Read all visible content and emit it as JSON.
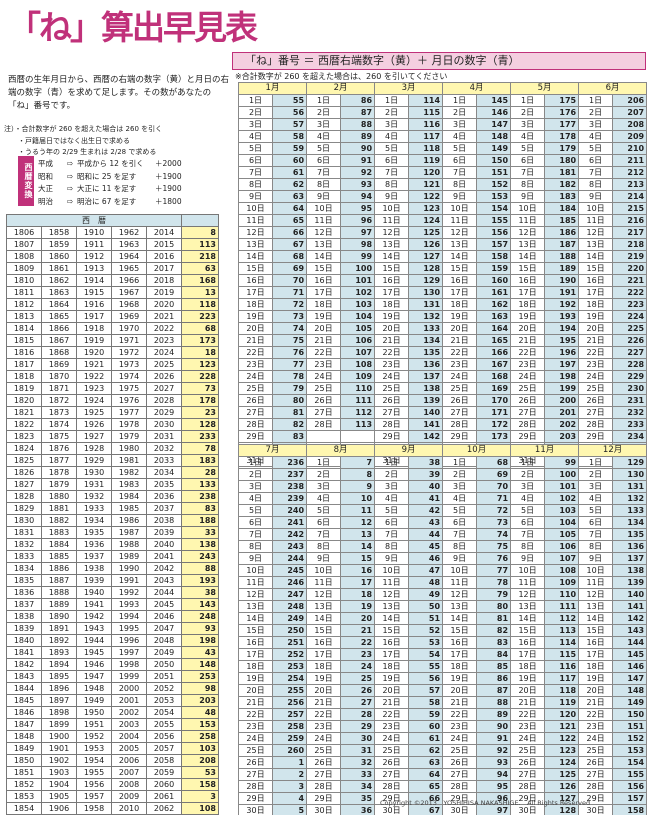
{
  "title": "「ね」算出早見表",
  "formula": "「ね」番号 ＝ 西暦右端数字（黄）＋ 月日の数字（青）",
  "note260": "※合計数字が 260 を超えた場合は、260 を引いてください",
  "intro": "西暦の生年月日から、西暦の右端の数字（黄）と月日の右端の数字（青）を求めて足します。その数があなたの「ね」番号です。",
  "notes": [
    "注）・合計数字が 260 を超えた場合は 260 を引く",
    "　　・戸籍届日ではなく出生日で求める",
    "　　・うるう年の 2/29 生まれは 2/28 で求める"
  ],
  "conversion_label": "西暦変換",
  "conversion": [
    [
      "平成",
      "⇨",
      "平成から 12 を引く",
      "＋2000"
    ],
    [
      "昭和",
      "⇨",
      "昭和に 25 を足す",
      "＋1900"
    ],
    [
      "大正",
      "⇨",
      "大正に 11 を足す",
      "＋1900"
    ],
    [
      "明治",
      "⇨",
      "明治に 67 を足す",
      "＋1800"
    ]
  ],
  "year_header": "西　暦",
  "years": [
    [
      1806,
      1858,
      1910,
      1962,
      2014,
      8
    ],
    [
      1807,
      1859,
      1911,
      1963,
      2015,
      113
    ],
    [
      1808,
      1860,
      1912,
      1964,
      2016,
      218
    ],
    [
      1809,
      1861,
      1913,
      1965,
      2017,
      63
    ],
    [
      1810,
      1862,
      1914,
      1966,
      2018,
      168
    ],
    [
      1811,
      1863,
      1915,
      1967,
      2019,
      13
    ],
    [
      1812,
      1864,
      1916,
      1968,
      2020,
      118
    ],
    [
      1813,
      1865,
      1917,
      1969,
      2021,
      223
    ],
    [
      1814,
      1866,
      1918,
      1970,
      2022,
      68
    ],
    [
      1815,
      1867,
      1919,
      1971,
      2023,
      173
    ],
    [
      1816,
      1868,
      1920,
      1972,
      2024,
      18
    ],
    [
      1817,
      1869,
      1921,
      1973,
      2025,
      123
    ],
    [
      1818,
      1870,
      1922,
      1974,
      2026,
      228
    ],
    [
      1819,
      1871,
      1923,
      1975,
      2027,
      73
    ],
    [
      1820,
      1872,
      1924,
      1976,
      2028,
      178
    ],
    [
      1821,
      1873,
      1925,
      1977,
      2029,
      23
    ],
    [
      1822,
      1874,
      1926,
      1978,
      2030,
      128
    ],
    [
      1823,
      1875,
      1927,
      1979,
      2031,
      233
    ],
    [
      1824,
      1876,
      1928,
      1980,
      2032,
      78
    ],
    [
      1825,
      1877,
      1929,
      1981,
      2033,
      183
    ],
    [
      1826,
      1878,
      1930,
      1982,
      2034,
      28
    ],
    [
      1827,
      1879,
      1931,
      1983,
      2035,
      133
    ],
    [
      1828,
      1880,
      1932,
      1984,
      2036,
      238
    ],
    [
      1829,
      1881,
      1933,
      1985,
      2037,
      83
    ],
    [
      1830,
      1882,
      1934,
      1986,
      2038,
      188
    ],
    [
      1831,
      1883,
      1935,
      1987,
      2039,
      33
    ],
    [
      1832,
      1884,
      1936,
      1988,
      2040,
      138
    ],
    [
      1833,
      1885,
      1937,
      1989,
      2041,
      243
    ],
    [
      1834,
      1886,
      1938,
      1990,
      2042,
      88
    ],
    [
      1835,
      1887,
      1939,
      1991,
      2043,
      193
    ],
    [
      1836,
      1888,
      1940,
      1992,
      2044,
      38
    ],
    [
      1837,
      1889,
      1941,
      1993,
      2045,
      143
    ],
    [
      1838,
      1890,
      1942,
      1994,
      2046,
      248
    ],
    [
      1839,
      1891,
      1943,
      1995,
      2047,
      93
    ],
    [
      1840,
      1892,
      1944,
      1996,
      2048,
      198
    ],
    [
      1841,
      1893,
      1945,
      1997,
      2049,
      43
    ],
    [
      1842,
      1894,
      1946,
      1998,
      2050,
      148
    ],
    [
      1843,
      1895,
      1947,
      1999,
      2051,
      253
    ],
    [
      1844,
      1896,
      1948,
      2000,
      2052,
      98
    ],
    [
      1845,
      1897,
      1949,
      2001,
      2053,
      203
    ],
    [
      1846,
      1898,
      1950,
      2002,
      2054,
      48
    ],
    [
      1847,
      1899,
      1951,
      2003,
      2055,
      153
    ],
    [
      1848,
      1900,
      1952,
      2004,
      2056,
      258
    ],
    [
      1849,
      1901,
      1953,
      2005,
      2057,
      103
    ],
    [
      1850,
      1902,
      1954,
      2006,
      2058,
      208
    ],
    [
      1851,
      1903,
      1955,
      2007,
      2059,
      53
    ],
    [
      1852,
      1904,
      1956,
      2008,
      2060,
      158
    ],
    [
      1853,
      1905,
      1957,
      2009,
      2061,
      3
    ],
    [
      1854,
      1906,
      1958,
      2010,
      2062,
      108
    ],
    [
      1855,
      1907,
      1959,
      2011,
      2063,
      213
    ],
    [
      1856,
      1908,
      1960,
      2012,
      2064,
      58
    ],
    [
      1857,
      1909,
      1961,
      2013,
      2065,
      163
    ]
  ],
  "months1": [
    {
      "name": "1月",
      "start": 55,
      "days": 31
    },
    {
      "name": "2月",
      "start": 86,
      "days": 28
    },
    {
      "name": "3月",
      "start": 114,
      "days": 31
    },
    {
      "name": "4月",
      "start": 145,
      "days": 30
    },
    {
      "name": "5月",
      "start": 175,
      "days": 31
    },
    {
      "name": "6月",
      "start": 206,
      "days": 30
    }
  ],
  "months2": [
    {
      "name": "7月",
      "start": 236,
      "days": 31
    },
    {
      "name": "8月",
      "start": 7,
      "days": 31
    },
    {
      "name": "9月",
      "start": 38,
      "days": 30
    },
    {
      "name": "10月",
      "start": 68,
      "days": 31
    },
    {
      "name": "11月",
      "start": 99,
      "days": 30
    },
    {
      "name": "12月",
      "start": 129,
      "days": 31
    }
  ],
  "day_suffix": "日",
  "copyright": "Copyright ©2013　YOSHIHISA NAKASHIGE.　All Rights Reserved"
}
